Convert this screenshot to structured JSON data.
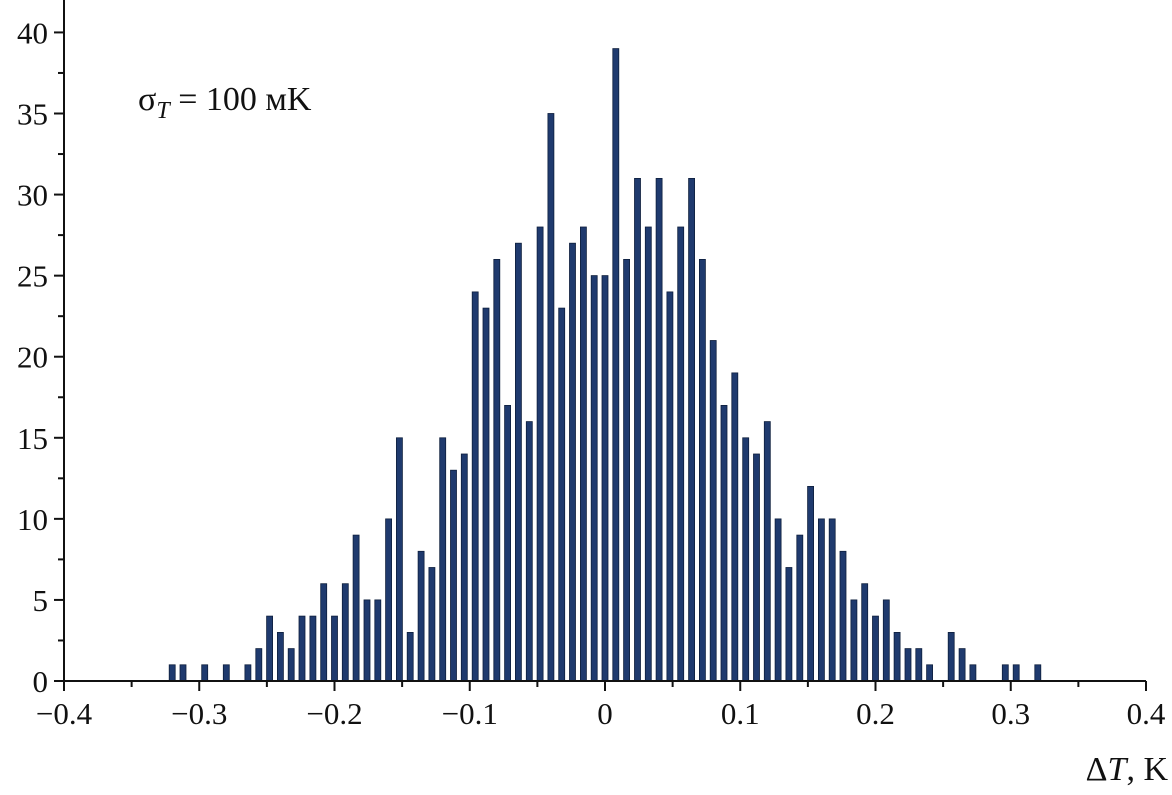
{
  "chart_data": {
    "type": "bar",
    "title": "",
    "annotation": {
      "sigma": "σ",
      "subscript": "T",
      "rest": " = 100 мK"
    },
    "xlabel": {
      "delta": "Δ",
      "var": "T",
      "unit": ", K"
    },
    "ylabel": "",
    "xlim": [
      -0.4,
      0.4
    ],
    "ylim": [
      0,
      42
    ],
    "xticks": [
      -0.4,
      -0.3,
      -0.2,
      -0.1,
      0,
      0.1,
      0.2,
      0.3,
      0.4
    ],
    "xtick_labels": [
      "−0.4",
      "−0.3",
      "−0.2",
      "−0.1",
      "0",
      "0.1",
      "0.2",
      "0.3",
      "0.4"
    ],
    "yticks": [
      0,
      5,
      10,
      15,
      20,
      25,
      30,
      35,
      40
    ],
    "ytick_labels": [
      "0",
      "5",
      "10",
      "15",
      "20",
      "25",
      "30",
      "35",
      "40"
    ],
    "bar_color": "#1f3a6e",
    "grid": false,
    "x": [
      -0.32,
      -0.312,
      -0.296,
      -0.28,
      -0.264,
      -0.256,
      -0.248,
      -0.24,
      -0.232,
      -0.224,
      -0.216,
      -0.208,
      -0.2,
      -0.192,
      -0.184,
      -0.176,
      -0.168,
      -0.16,
      -0.152,
      -0.144,
      -0.136,
      -0.128,
      -0.12,
      -0.112,
      -0.104,
      -0.096,
      -0.088,
      -0.08,
      -0.072,
      -0.064,
      -0.056,
      -0.048,
      -0.04,
      -0.032,
      -0.024,
      -0.016,
      -0.008,
      0.0,
      0.008,
      0.016,
      0.024,
      0.032,
      0.04,
      0.048,
      0.056,
      0.064,
      0.072,
      0.08,
      0.088,
      0.096,
      0.104,
      0.112,
      0.12,
      0.128,
      0.136,
      0.144,
      0.152,
      0.16,
      0.168,
      0.176,
      0.184,
      0.192,
      0.2,
      0.208,
      0.216,
      0.224,
      0.232,
      0.24,
      0.256,
      0.264,
      0.272,
      0.296,
      0.304,
      0.32
    ],
    "values": [
      1,
      1,
      1,
      1,
      1,
      2,
      4,
      3,
      2,
      4,
      4,
      6,
      4,
      6,
      9,
      5,
      5,
      10,
      15,
      3,
      8,
      7,
      15,
      13,
      14,
      24,
      23,
      26,
      17,
      27,
      16,
      28,
      35,
      23,
      27,
      28,
      25,
      25,
      39,
      26,
      31,
      28,
      31,
      24,
      28,
      31,
      26,
      21,
      17,
      19,
      15,
      14,
      16,
      10,
      7,
      9,
      12,
      10,
      10,
      8,
      5,
      6,
      4,
      5,
      3,
      2,
      2,
      1,
      3,
      2,
      1,
      1,
      1,
      1
    ]
  }
}
